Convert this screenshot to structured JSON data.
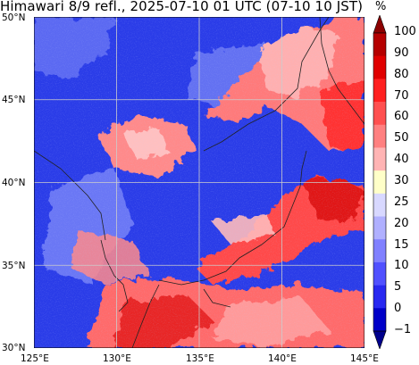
{
  "title": "Himawari 8/9 refl., 2025-07-10 01 UTC (07-10 10 JST)",
  "colorbar": {
    "unit": "%",
    "labels": [
      "100",
      "90",
      "80",
      "70",
      "60",
      "50",
      "40",
      "30",
      "25",
      "20",
      "15",
      "10",
      "5",
      "0",
      "−1"
    ],
    "colors": [
      "#8c0000",
      "#b50000",
      "#e00000",
      "#ff2020",
      "#ff5050",
      "#ff8080",
      "#ffb4b4",
      "#ffffc8",
      "#d8d8ff",
      "#b0b0ff",
      "#8080ff",
      "#5050ff",
      "#2828f0",
      "#0000c8",
      "#00008c"
    ]
  },
  "map": {
    "lon_range": [
      125,
      145
    ],
    "lat_range": [
      30,
      50
    ],
    "lon_ticks": [
      "125°E",
      "130°E",
      "135°E",
      "140°E",
      "145°E"
    ],
    "lat_ticks": [
      "30°N",
      "35°N",
      "40°N",
      "45°N",
      "50°N"
    ],
    "background_color": "#2a3ce8"
  }
}
